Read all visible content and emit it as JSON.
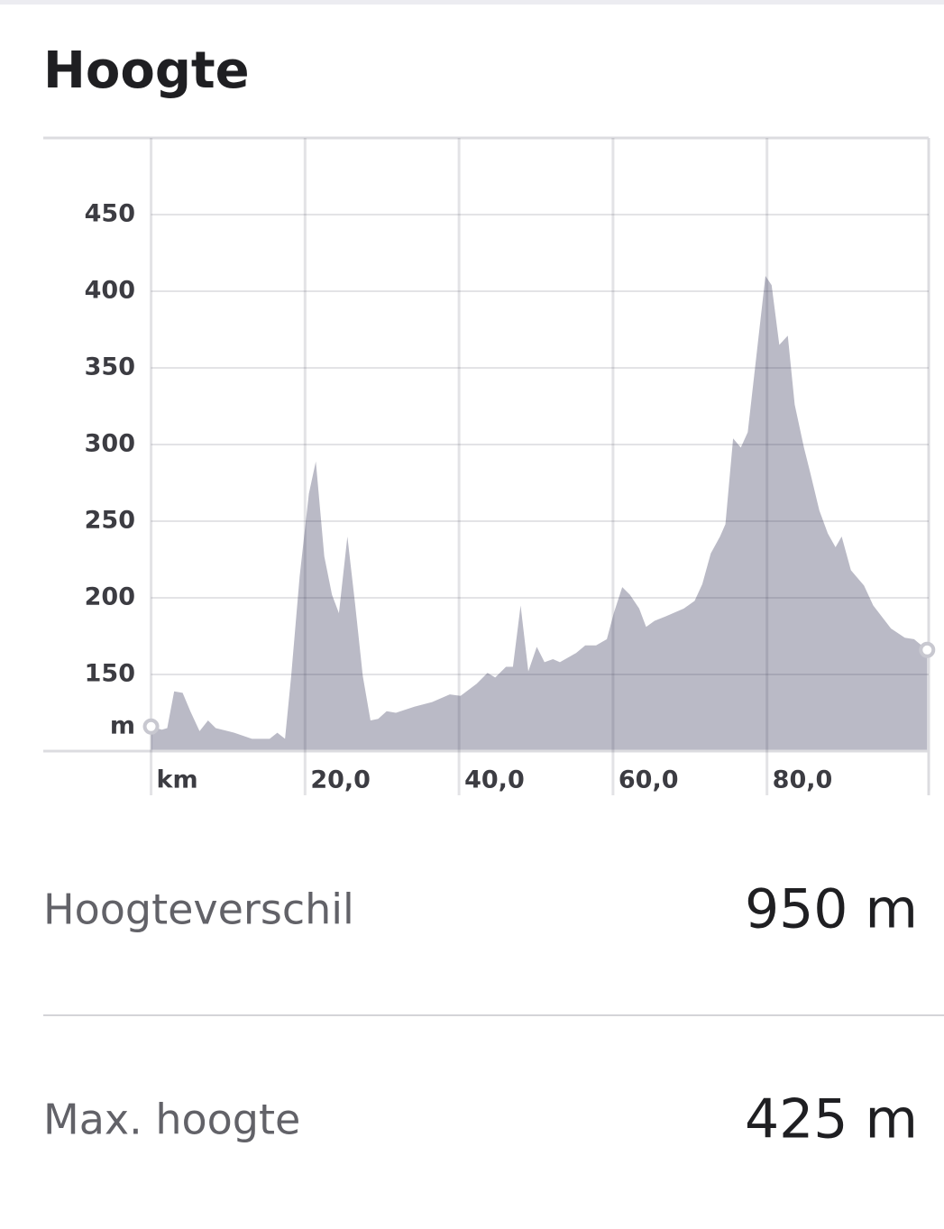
{
  "chart_data": {
    "type": "area",
    "title": "Hoogte",
    "ylabel": "m",
    "color": "#babac6",
    "grid": true,
    "xlim": [
      -14,
      101
    ],
    "ylim": [
      100,
      500
    ],
    "xticks": [
      {
        "value": 0,
        "label": "km"
      },
      {
        "value": 20,
        "label": "20,0"
      },
      {
        "value": 40,
        "label": "40,0"
      },
      {
        "value": 60,
        "label": "60,0"
      },
      {
        "value": 80,
        "label": "80,0"
      }
    ],
    "yticks": [
      150,
      200,
      250,
      300,
      350,
      400,
      450
    ],
    "x": [
      0,
      1.4,
      2.1,
      3.0,
      4.1,
      5.1,
      6.3,
      7.4,
      8.4,
      10.8,
      13.1,
      15.4,
      16.4,
      17.4,
      18.2,
      19.3,
      20.5,
      21.4,
      22.5,
      23.5,
      24.4,
      25.5,
      26.5,
      27.5,
      28.5,
      29.5,
      30.6,
      31.8,
      34.2,
      36.5,
      38.8,
      40.2,
      42.3,
      43.7,
      44.7,
      46.1,
      47.0,
      48.0,
      49.0,
      50.1,
      51.1,
      52.2,
      53.1,
      55.2,
      56.4,
      57.8,
      59.2,
      60.1,
      61.2,
      62.2,
      63.4,
      64.3,
      65.4,
      66.9,
      69.2,
      70.6,
      71.6,
      72.7,
      73.9,
      74.6,
      75.6,
      76.6,
      77.5,
      79.8,
      80.6,
      81.6,
      82.7,
      83.6,
      84.8,
      85.6,
      86.8,
      87.9,
      88.9,
      89.7,
      90.9,
      92.6,
      93.8,
      96.1,
      97.9,
      99.1,
      100.8
    ],
    "values": [
      116,
      114,
      115,
      139,
      138,
      126,
      113,
      120,
      115,
      112,
      108,
      108,
      112,
      108,
      149,
      214,
      268,
      289,
      227,
      202,
      190,
      240,
      196,
      149,
      120,
      121,
      126,
      125,
      129,
      132,
      137,
      136,
      144,
      151,
      148,
      155,
      155,
      195,
      152,
      168,
      158,
      160,
      158,
      164,
      169,
      169,
      173,
      190,
      207,
      202,
      193,
      181,
      185,
      188,
      193,
      198,
      209,
      229,
      240,
      248,
      304,
      298,
      308,
      410,
      404,
      365,
      371,
      326,
      298,
      282,
      257,
      242,
      233,
      240,
      218,
      208,
      195,
      180,
      174,
      173,
      166
    ]
  },
  "stats": [
    {
      "label": "Hoogteverschil",
      "value": "950 m"
    },
    {
      "label": "Max. hoogte",
      "value": "425 m"
    }
  ]
}
